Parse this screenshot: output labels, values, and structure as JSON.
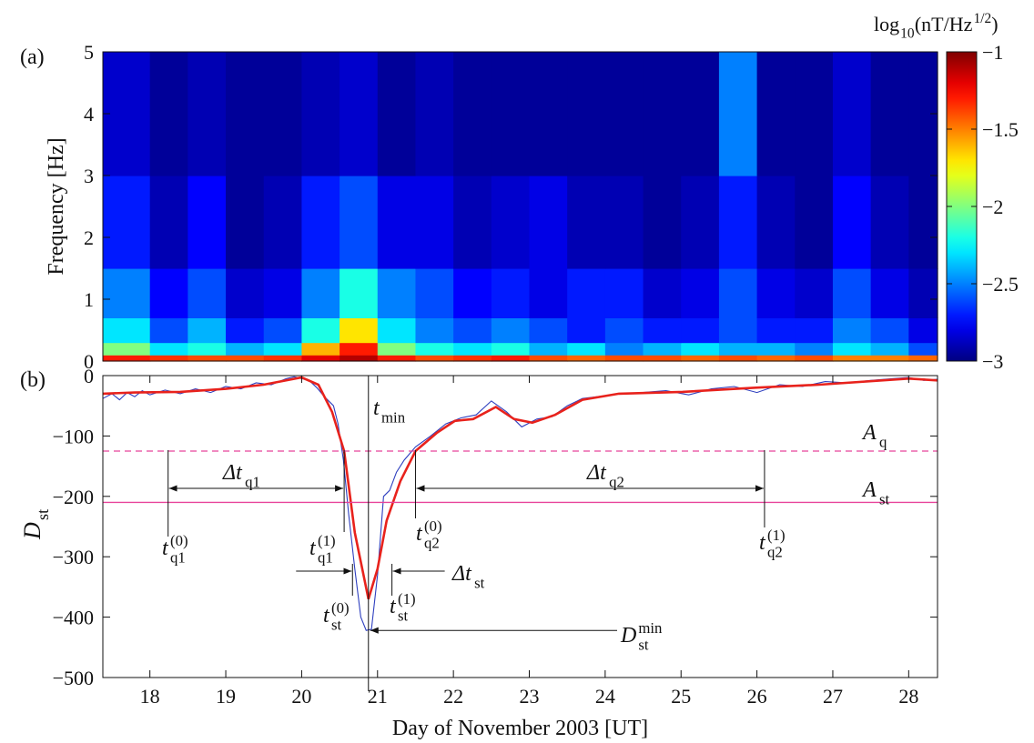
{
  "chart_data": [
    {
      "type": "heatmap",
      "panel_label": "(a)",
      "ylabel": "Frequency [Hz]",
      "xlim": [
        17.38,
        28.38
      ],
      "ylim": [
        0,
        5
      ],
      "yticks": [
        0,
        1,
        2,
        3,
        4,
        5
      ],
      "x_edges": [
        17.38,
        18,
        18.5,
        19,
        19.5,
        20,
        20.5,
        21,
        21.5,
        22,
        22.5,
        23,
        23.5,
        24,
        24.5,
        25,
        25.5,
        26,
        26.5,
        27,
        27.5,
        28,
        28.38
      ],
      "y_edges": [
        0,
        0.1,
        0.3,
        0.7,
        1.5,
        3,
        5
      ],
      "z": [
        [
          -1.3,
          -1.35,
          -1.4,
          -1.4,
          -1.35,
          -1.2,
          -1.1,
          -1.3,
          -1.4,
          -1.35,
          -1.3,
          -1.4,
          -1.45,
          -1.4,
          -1.4,
          -1.45,
          -1.4,
          -1.45,
          -1.4,
          -1.5,
          -1.5,
          -1.45
        ],
        [
          -2.0,
          -2.3,
          -2.2,
          -2.4,
          -2.3,
          -1.6,
          -1.3,
          -2.0,
          -2.2,
          -2.3,
          -2.2,
          -2.4,
          -2.3,
          -2.5,
          -2.4,
          -2.3,
          -2.4,
          -2.4,
          -2.5,
          -2.3,
          -2.4,
          -2.6
        ],
        [
          -2.3,
          -2.6,
          -2.4,
          -2.7,
          -2.6,
          -2.2,
          -1.7,
          -2.3,
          -2.5,
          -2.6,
          -2.5,
          -2.6,
          -2.7,
          -2.6,
          -2.7,
          -2.7,
          -2.6,
          -2.7,
          -2.7,
          -2.5,
          -2.6,
          -2.8
        ],
        [
          -2.5,
          -2.75,
          -2.6,
          -2.85,
          -2.8,
          -2.5,
          -2.2,
          -2.5,
          -2.6,
          -2.75,
          -2.7,
          -2.8,
          -2.7,
          -2.7,
          -2.85,
          -2.8,
          -2.6,
          -2.8,
          -2.85,
          -2.6,
          -2.8,
          -2.9
        ],
        [
          -2.7,
          -2.9,
          -2.75,
          -2.95,
          -2.9,
          -2.7,
          -2.6,
          -2.8,
          -2.8,
          -2.9,
          -2.85,
          -2.8,
          -2.9,
          -2.9,
          -2.95,
          -2.9,
          -2.7,
          -2.9,
          -2.95,
          -2.75,
          -2.9,
          -2.95
        ],
        [
          -2.85,
          -2.95,
          -2.9,
          -2.95,
          -2.95,
          -2.9,
          -2.85,
          -2.95,
          -2.9,
          -2.95,
          -2.95,
          -2.95,
          -2.95,
          -2.95,
          -2.95,
          -2.95,
          -2.5,
          -2.95,
          -2.95,
          -2.85,
          -2.95,
          -2.95
        ]
      ],
      "colormap": "jet",
      "colorbar": {
        "lim": [
          -3,
          -1
        ],
        "ticks": [
          {
            "value": -1,
            "label": "−1"
          },
          {
            "value": -1.5,
            "label": "−1.5"
          },
          {
            "value": -2,
            "label": "−2"
          },
          {
            "value": -2.5,
            "label": "−2.5"
          },
          {
            "value": -3,
            "label": "−3"
          }
        ],
        "label": {
          "base": "log",
          "sub": "10",
          "main": "(nT/Hz",
          "sup": "1/2",
          "end": ")"
        }
      }
    },
    {
      "type": "line",
      "panel_label": "(b)",
      "xlabel": "Day of November 2003 [UT]",
      "ylabel": {
        "base": "D",
        "sub": "st"
      },
      "xlim": [
        17.38,
        28.38
      ],
      "ylim": [
        -500,
        0
      ],
      "xticks": [
        18,
        19,
        20,
        21,
        22,
        23,
        24,
        25,
        26,
        27,
        28
      ],
      "yticks": [
        {
          "value": -500,
          "label": "−500"
        },
        {
          "value": -400,
          "label": "−400"
        },
        {
          "value": -300,
          "label": "−300"
        },
        {
          "value": -200,
          "label": "−200"
        },
        {
          "value": -100,
          "label": "−100"
        },
        0
      ],
      "series": [
        {
          "color": "#2e3fbf",
          "x": [
            17.38,
            17.5,
            17.6,
            17.7,
            17.8,
            17.9,
            18.0,
            18.2,
            18.4,
            18.6,
            18.8,
            19.0,
            19.2,
            19.4,
            19.6,
            19.8,
            19.9,
            20.0,
            20.1,
            20.2,
            20.3,
            20.42,
            20.48,
            20.55,
            20.62,
            20.7,
            20.78,
            20.85,
            20.92,
            21.0,
            21.08,
            21.16,
            21.25,
            21.35,
            21.5,
            21.7,
            21.9,
            22.1,
            22.3,
            22.5,
            22.7,
            22.9,
            23.1,
            23.3,
            23.5,
            23.7,
            23.9,
            24.2,
            24.5,
            24.8,
            25.1,
            25.4,
            25.7,
            26.0,
            26.3,
            26.6,
            26.9,
            27.2,
            27.5,
            27.8,
            28.0,
            28.2,
            28.38
          ],
          "values": [
            -38,
            -30,
            -40,
            -28,
            -35,
            -25,
            -32,
            -24,
            -30,
            -22,
            -28,
            -18,
            -22,
            -12,
            -15,
            -5,
            -2,
            -5,
            -8,
            -20,
            -35,
            -50,
            -80,
            -140,
            -230,
            -320,
            -400,
            -422,
            -420,
            -330,
            -200,
            -190,
            -160,
            -140,
            -118,
            -100,
            -80,
            -70,
            -65,
            -42,
            -60,
            -85,
            -72,
            -68,
            -50,
            -38,
            -35,
            -30,
            -28,
            -25,
            -32,
            -22,
            -18,
            -28,
            -15,
            -18,
            -10,
            -12,
            -8,
            -5,
            -3,
            -8,
            -6
          ]
        },
        {
          "color": "#e8221c",
          "x": [
            17.38,
            17.8,
            18.4,
            19.0,
            19.5,
            20.0,
            20.22,
            20.4,
            20.56,
            20.7,
            20.88,
            21.0,
            21.12,
            21.3,
            21.5,
            21.78,
            22.02,
            22.26,
            22.56,
            22.8,
            23.04,
            23.34,
            23.7,
            24.18,
            25.02,
            25.98,
            26.82,
            28.0,
            28.38
          ],
          "values": [
            -30,
            -28,
            -27,
            -22,
            -15,
            -3,
            -15,
            -60,
            -125,
            -260,
            -370,
            -320,
            -240,
            -175,
            -125,
            -95,
            -75,
            -72,
            -52,
            -72,
            -78,
            -65,
            -40,
            -30,
            -27,
            -20,
            -15,
            -5,
            -8
          ]
        }
      ],
      "hlines": [
        {
          "label": {
            "base": "A",
            "sub": "q"
          },
          "value": -125,
          "dashed": true,
          "color": "#e8449a"
        },
        {
          "label": {
            "base": "A",
            "sub": "st"
          },
          "value": -210,
          "dashed": false,
          "color": "#e8449a"
        }
      ],
      "markers": [
        {
          "label": {
            "base": "t",
            "sub": "q1",
            "sup": "(0)"
          },
          "x": 18.24
        },
        {
          "label": {
            "base": "t",
            "sub": "q1",
            "sup": "(1)"
          },
          "x": 20.56
        },
        {
          "label": {
            "base": "t",
            "sub": "q2",
            "sup": "(0)"
          },
          "x": 21.5
        },
        {
          "label": {
            "base": "t",
            "sub": "q2",
            "sup": "(1)"
          },
          "x": 26.1
        },
        {
          "label": {
            "base": "t",
            "sub": "min"
          },
          "x": 20.88
        },
        {
          "label": {
            "base": "t",
            "sub": "st",
            "sup": "(0)"
          },
          "x": 20.67
        },
        {
          "label": {
            "base": "t",
            "sub": "st",
            "sup": "(1)"
          },
          "x": 21.19
        }
      ],
      "intervals": [
        {
          "label": {
            "base": "Δt",
            "sub": "q1"
          },
          "from": 18.24,
          "to": 20.56
        },
        {
          "label": {
            "base": "Δt",
            "sub": "q2"
          },
          "from": 21.5,
          "to": 26.1
        },
        {
          "label": {
            "base": "Δt",
            "sub": "st"
          },
          "from": 20.67,
          "to": 21.19
        }
      ],
      "minimum": {
        "label": {
          "base": "D",
          "sub": "st",
          "sup": "min"
        },
        "x": 20.88,
        "value": -422
      }
    }
  ]
}
